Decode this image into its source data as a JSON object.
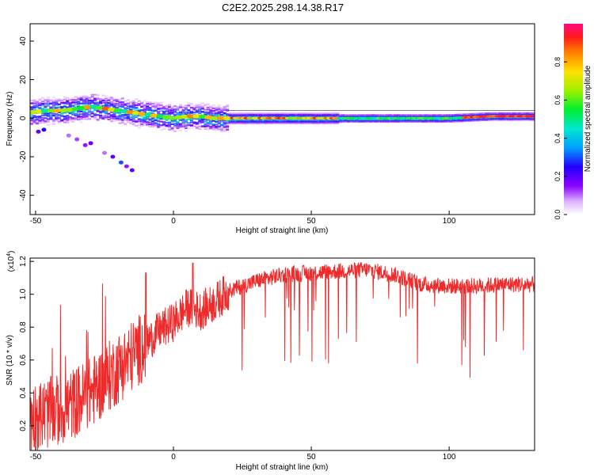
{
  "title": "C2E2.2025.298.14.38.R17",
  "colors": {
    "snr_line": "#ee2a2a",
    "ridge": "#ff1530"
  },
  "chart_data": [
    {
      "type": "heatmap",
      "xlabel": "Height of straight line (km)",
      "ylabel": "Frequency (Hz)",
      "xlim": [
        -52,
        131
      ],
      "ylim": [
        -50,
        49
      ],
      "xticks": [
        -50,
        0,
        50,
        100
      ],
      "yticks": [
        -40,
        -20,
        0,
        20,
        40
      ],
      "ridge": {
        "x": [
          -52,
          -45,
          -40,
          -35,
          -30,
          -25,
          -20,
          -15,
          -10,
          -5,
          0,
          5,
          10,
          15,
          20,
          40,
          60,
          80,
          100,
          115,
          131
        ],
        "y": [
          3,
          4,
          4,
          5,
          6,
          5,
          4,
          3,
          2,
          1,
          0,
          1,
          1,
          0,
          0,
          0,
          0,
          0,
          0,
          1,
          1
        ]
      },
      "colorbar": {
        "label": "Normalized spectral amplitude",
        "range": [
          0,
          1
        ],
        "ticks": [
          "0.0",
          "0.2",
          "0.4",
          "0.6",
          "0.8"
        ]
      }
    },
    {
      "type": "line",
      "series_name": "SNR",
      "xlabel": "Height of straight line (km)",
      "ylabel": "SNR (10 * v/v)",
      "y_multiplier": "(x10",
      "y_multiplier_exp": "4",
      "xlim": [
        -52,
        131
      ],
      "ylim": [
        0.05,
        1.22
      ],
      "xticks": [
        -50,
        0,
        50,
        100
      ],
      "yticks": [
        "0.2",
        "0.4",
        "0.6",
        "0.8",
        "1.0",
        "1.2"
      ],
      "trend": {
        "x": [
          -52,
          -40,
          -30,
          -20,
          -10,
          -5,
          0,
          5,
          10,
          15,
          20,
          30,
          40,
          50,
          60,
          70,
          80,
          90,
          100,
          110,
          120,
          131
        ],
        "y": [
          0.25,
          0.3,
          0.4,
          0.55,
          0.7,
          0.78,
          0.83,
          0.92,
          0.9,
          0.95,
          1.02,
          1.08,
          1.12,
          1.13,
          1.14,
          1.15,
          1.12,
          1.06,
          1.05,
          1.05,
          1.06,
          1.06
        ]
      }
    }
  ]
}
